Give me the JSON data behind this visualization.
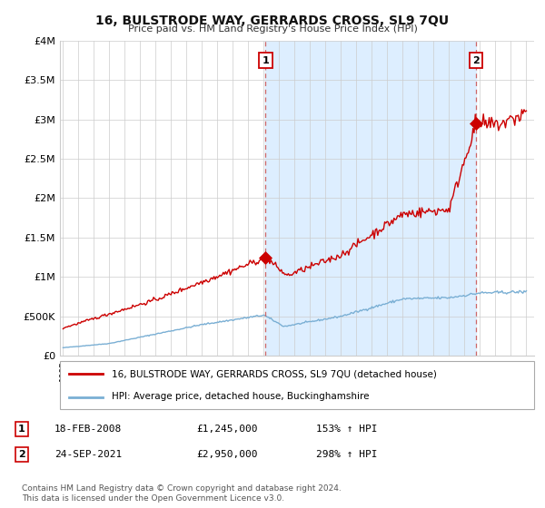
{
  "title": "16, BULSTRODE WAY, GERRARDS CROSS, SL9 7QU",
  "subtitle": "Price paid vs. HM Land Registry's House Price Index (HPI)",
  "legend_line1": "16, BULSTRODE WAY, GERRARDS CROSS, SL9 7QU (detached house)",
  "legend_line2": "HPI: Average price, detached house, Buckinghamshire",
  "sale1_date": 2008.12,
  "sale1_price": 1245000,
  "sale1_label": "1",
  "sale1_display": "18-FEB-2008",
  "sale1_pct": "153%",
  "sale2_date": 2021.73,
  "sale2_price": 2950000,
  "sale2_label": "2",
  "sale2_display": "24-SEP-2021",
  "sale2_pct": "298%",
  "footnote1": "Contains HM Land Registry data © Crown copyright and database right 2024.",
  "footnote2": "This data is licensed under the Open Government Licence v3.0.",
  "red_color": "#cc0000",
  "blue_color": "#7aafd4",
  "shade_color": "#ddeeff",
  "dashed_color": "#cc6666",
  "background_color": "#ffffff",
  "grid_color": "#cccccc",
  "xlim": [
    1994.8,
    2025.5
  ],
  "ylim": [
    0,
    4000000
  ],
  "yticks": [
    0,
    500000,
    1000000,
    1500000,
    2000000,
    2500000,
    3000000,
    3500000,
    4000000
  ],
  "ytick_labels": [
    "£0",
    "£500K",
    "£1M",
    "£1.5M",
    "£2M",
    "£2.5M",
    "£3M",
    "£3.5M",
    "£4M"
  ]
}
